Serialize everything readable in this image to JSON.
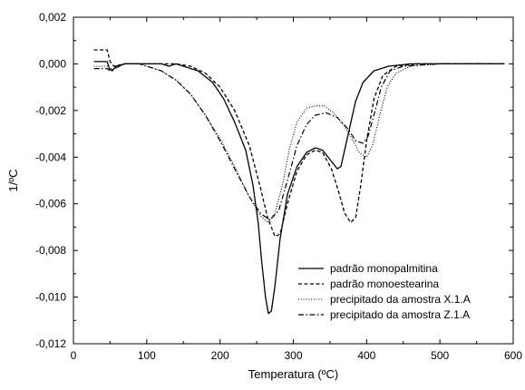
{
  "chart_data": {
    "type": "line",
    "xlabel": "Temperatura (ºC)",
    "ylabel": "1/ºC",
    "xlim": [
      0,
      600
    ],
    "ylim": [
      -0.012,
      0.002
    ],
    "xticks": [
      0,
      100,
      200,
      300,
      400,
      500,
      600
    ],
    "yticks": [
      0.002,
      0.0,
      -0.002,
      -0.004,
      -0.006,
      -0.008,
      -0.01,
      -0.012
    ],
    "xtick_labels": [
      "0",
      "100",
      "200",
      "300",
      "400",
      "500",
      "600"
    ],
    "ytick_labels": [
      "0,002",
      "0,000",
      "-0,002",
      "-0,004",
      "-0,006",
      "-0,008",
      "-0,010",
      "-0,012"
    ],
    "grid": false,
    "legend_position": "bottom-right",
    "series": [
      {
        "name": "padrão monopalmitina",
        "style": "solid",
        "points": [
          [
            28,
            0.0001
          ],
          [
            46,
            0.0001
          ],
          [
            49,
            -0.0002
          ],
          [
            53,
            -0.0003
          ],
          [
            58,
            -0.0001
          ],
          [
            70,
            0.0
          ],
          [
            100,
            0.0
          ],
          [
            120,
            0.0
          ],
          [
            130,
            -0.0001
          ],
          [
            140,
            0.0
          ],
          [
            150,
            -0.0001
          ],
          [
            170,
            -0.0003
          ],
          [
            190,
            -0.0008
          ],
          [
            205,
            -0.0015
          ],
          [
            220,
            -0.0025
          ],
          [
            235,
            -0.0037
          ],
          [
            245,
            -0.0052
          ],
          [
            252,
            -0.0068
          ],
          [
            257,
            -0.0085
          ],
          [
            262,
            -0.01
          ],
          [
            266,
            -0.0107
          ],
          [
            270,
            -0.0106
          ],
          [
            275,
            -0.0095
          ],
          [
            282,
            -0.0075
          ],
          [
            292,
            -0.0056
          ],
          [
            305,
            -0.0044
          ],
          [
            318,
            -0.0038
          ],
          [
            330,
            -0.0036
          ],
          [
            340,
            -0.0037
          ],
          [
            350,
            -0.0041
          ],
          [
            360,
            -0.0045
          ],
          [
            365,
            -0.0044
          ],
          [
            375,
            -0.003
          ],
          [
            385,
            -0.0016
          ],
          [
            395,
            -0.0008
          ],
          [
            410,
            -0.0003
          ],
          [
            430,
            -0.0001
          ],
          [
            460,
            0.0
          ],
          [
            500,
            0.0
          ],
          [
            588,
            0.0
          ]
        ]
      },
      {
        "name": "padrão monoestearina",
        "style": "dashed",
        "points": [
          [
            28,
            0.0006
          ],
          [
            46,
            0.0006
          ],
          [
            50,
            0.0001
          ],
          [
            55,
            -0.0001
          ],
          [
            70,
            0.0
          ],
          [
            100,
            0.0
          ],
          [
            140,
            0.0
          ],
          [
            160,
            -0.0001
          ],
          [
            180,
            -0.0004
          ],
          [
            200,
            -0.001
          ],
          [
            220,
            -0.002
          ],
          [
            240,
            -0.0035
          ],
          [
            255,
            -0.0053
          ],
          [
            265,
            -0.0066
          ],
          [
            275,
            -0.0074
          ],
          [
            282,
            -0.0073
          ],
          [
            292,
            -0.006
          ],
          [
            305,
            -0.0046
          ],
          [
            318,
            -0.0039
          ],
          [
            330,
            -0.0037
          ],
          [
            340,
            -0.0038
          ],
          [
            352,
            -0.0045
          ],
          [
            362,
            -0.0055
          ],
          [
            370,
            -0.0064
          ],
          [
            378,
            -0.0068
          ],
          [
            385,
            -0.0066
          ],
          [
            392,
            -0.0052
          ],
          [
            400,
            -0.0033
          ],
          [
            410,
            -0.0015
          ],
          [
            422,
            -0.0005
          ],
          [
            440,
            -0.0001
          ],
          [
            470,
            0.0
          ],
          [
            588,
            0.0
          ]
        ]
      },
      {
        "name": "precipitado da amostra X.1.A",
        "style": "dotted",
        "points": [
          [
            28,
            -0.0001
          ],
          [
            46,
            -0.0001
          ],
          [
            50,
            -0.0002
          ],
          [
            56,
            -0.0002
          ],
          [
            70,
            0.0
          ],
          [
            90,
            0.0
          ],
          [
            100,
            -0.0001
          ],
          [
            120,
            -0.0003
          ],
          [
            140,
            -0.0007
          ],
          [
            160,
            -0.0013
          ],
          [
            180,
            -0.0022
          ],
          [
            200,
            -0.0032
          ],
          [
            220,
            -0.0044
          ],
          [
            240,
            -0.0057
          ],
          [
            255,
            -0.0065
          ],
          [
            265,
            -0.0068
          ],
          [
            275,
            -0.0064
          ],
          [
            285,
            -0.0052
          ],
          [
            295,
            -0.0036
          ],
          [
            305,
            -0.0025
          ],
          [
            318,
            -0.0019
          ],
          [
            330,
            -0.0018
          ],
          [
            342,
            -0.0018
          ],
          [
            355,
            -0.0021
          ],
          [
            368,
            -0.0026
          ],
          [
            380,
            -0.0032
          ],
          [
            390,
            -0.0038
          ],
          [
            400,
            -0.004
          ],
          [
            408,
            -0.0035
          ],
          [
            418,
            -0.0022
          ],
          [
            428,
            -0.001
          ],
          [
            440,
            -0.0004
          ],
          [
            460,
            -0.0001
          ],
          [
            500,
            0.0
          ],
          [
            588,
            0.0
          ]
        ]
      },
      {
        "name": "precipitado da amostra Z.1.A",
        "style": "dashdot",
        "points": [
          [
            28,
            -0.0002
          ],
          [
            46,
            -0.0002
          ],
          [
            50,
            -0.0003
          ],
          [
            56,
            -0.0002
          ],
          [
            70,
            0.0
          ],
          [
            90,
            0.0
          ],
          [
            100,
            -0.0001
          ],
          [
            120,
            -0.0003
          ],
          [
            140,
            -0.0007
          ],
          [
            160,
            -0.0013
          ],
          [
            180,
            -0.0022
          ],
          [
            200,
            -0.0033
          ],
          [
            220,
            -0.0045
          ],
          [
            240,
            -0.0057
          ],
          [
            255,
            -0.0064
          ],
          [
            268,
            -0.0067
          ],
          [
            280,
            -0.0063
          ],
          [
            292,
            -0.005
          ],
          [
            305,
            -0.0035
          ],
          [
            318,
            -0.0026
          ],
          [
            330,
            -0.0022
          ],
          [
            345,
            -0.0021
          ],
          [
            360,
            -0.0023
          ],
          [
            375,
            -0.0028
          ],
          [
            385,
            -0.0033
          ],
          [
            395,
            -0.0034
          ],
          [
            402,
            -0.0031
          ],
          [
            410,
            -0.0022
          ],
          [
            420,
            -0.001
          ],
          [
            432,
            -0.0003
          ],
          [
            450,
            -0.0001
          ],
          [
            500,
            0.0
          ],
          [
            588,
            0.0
          ]
        ]
      }
    ]
  }
}
